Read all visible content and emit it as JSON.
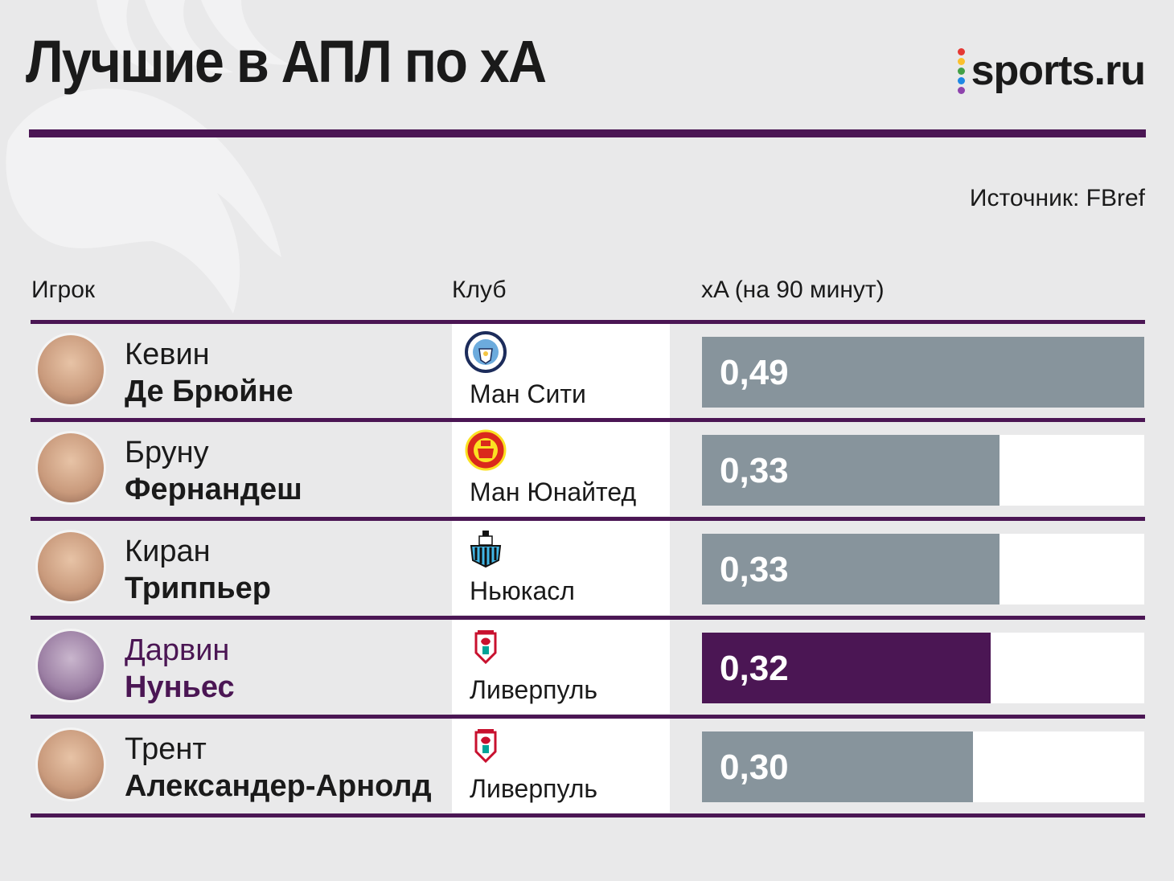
{
  "title": "Лучшие в АПЛ по xA",
  "brand": "sports.ru",
  "source": "Источник: FBref",
  "columns": {
    "player": "Игрок",
    "club": "Клуб",
    "metric": "xA (на 90 минут)"
  },
  "colors": {
    "accent": "#4b1654",
    "bar": "#87949c",
    "background": "#e9e9ea"
  },
  "rows": [
    {
      "first_name": "Кевин",
      "last_name": "Де Брюйне",
      "club": "Ман Сити",
      "value_label": "0,49",
      "highlight": false,
      "crest_icon": "man-city-crest-icon"
    },
    {
      "first_name": "Бруну",
      "last_name": "Фернандеш",
      "club": "Ман Юнайтед",
      "value_label": "0,33",
      "highlight": false,
      "crest_icon": "man-united-crest-icon"
    },
    {
      "first_name": "Киран",
      "last_name": "Триппьер",
      "club": "Ньюкасл",
      "value_label": "0,33",
      "highlight": false,
      "crest_icon": "newcastle-crest-icon"
    },
    {
      "first_name": "Дарвин",
      "last_name": "Нуньес",
      "club": "Ливерпуль",
      "value_label": "0,32",
      "highlight": true,
      "crest_icon": "liverpool-crest-icon"
    },
    {
      "first_name": "Трент",
      "last_name": "Александер-Арнолд",
      "club": "Ливерпуль",
      "value_label": "0,30",
      "highlight": false,
      "crest_icon": "liverpool-crest-icon"
    }
  ],
  "chart_data": {
    "type": "bar",
    "categories": [
      "Кевин Де Брюйне",
      "Бруну Фернандеш",
      "Киран Триппьер",
      "Дарвин Нуньес",
      "Трент Александер-Арнолд"
    ],
    "values": [
      0.49,
      0.33,
      0.33,
      0.32,
      0.3
    ],
    "ylabel": "xA (на 90 минут)",
    "xlim": [
      0,
      0.49
    ],
    "orientation": "horizontal",
    "grid": false
  }
}
